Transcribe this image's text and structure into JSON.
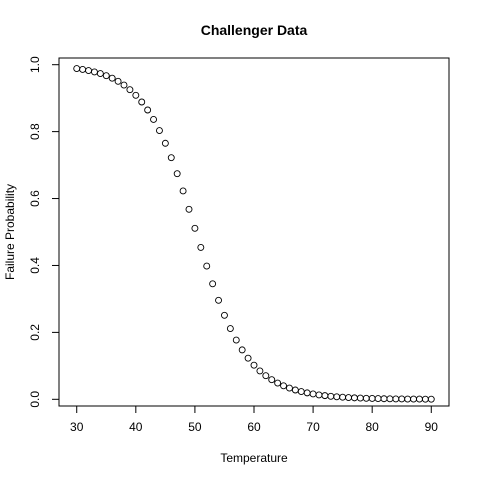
{
  "chart_data": {
    "type": "scatter",
    "title": "Challenger Data",
    "xlabel": "Temperature",
    "ylabel": "Failure Probability",
    "xlim": [
      27,
      93
    ],
    "ylim": [
      -0.02,
      1.02
    ],
    "xticks": [
      30,
      40,
      50,
      60,
      70,
      80,
      90
    ],
    "yticks": [
      0.0,
      0.2,
      0.4,
      0.6,
      0.8,
      1.0
    ],
    "ytick_labels": [
      "0.0",
      "0.2",
      "0.4",
      "0.6",
      "0.8",
      "1.0"
    ],
    "grid": false,
    "marker": "open-circle",
    "x": [
      30,
      31,
      32,
      33,
      34,
      35,
      36,
      37,
      38,
      39,
      40,
      41,
      42,
      43,
      44,
      45,
      46,
      47,
      48,
      49,
      50,
      51,
      52,
      53,
      54,
      55,
      56,
      57,
      58,
      59,
      60,
      61,
      62,
      63,
      64,
      65,
      66,
      67,
      68,
      69,
      70,
      71,
      72,
      73,
      74,
      75,
      76,
      77,
      78,
      79,
      80,
      81,
      82,
      83,
      84,
      85,
      86,
      87,
      88,
      89,
      90
    ],
    "y": [
      0.9885,
      0.9858,
      0.9825,
      0.9784,
      0.9734,
      0.9672,
      0.9596,
      0.9503,
      0.939,
      0.9252,
      0.9085,
      0.8885,
      0.8646,
      0.8363,
      0.8032,
      0.7652,
      0.7221,
      0.6744,
      0.6226,
      0.5677,
      0.5109,
      0.4539,
      0.3982,
      0.3451,
      0.2958,
      0.2511,
      0.2115,
      0.1771,
      0.1477,
      0.1229,
      0.1021,
      0.0848,
      0.0705,
      0.0585,
      0.0486,
      0.0404,
      0.0335,
      0.0278,
      0.0231,
      0.0192,
      0.0159,
      0.0132,
      0.011,
      0.0091,
      0.0076,
      0.0063,
      0.0052,
      0.0043,
      0.0036,
      0.003,
      0.0025,
      0.0021,
      0.0017,
      0.0014,
      0.0012,
      0.001,
      0.0008,
      0.0007,
      0.0006,
      0.0005,
      0.0004
    ]
  }
}
